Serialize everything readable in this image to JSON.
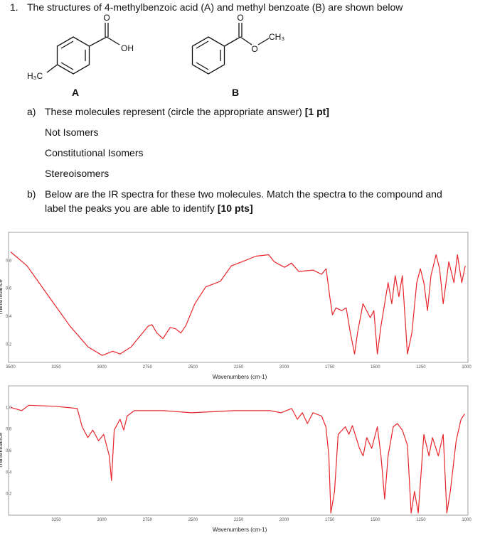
{
  "question": {
    "number": "1.",
    "text": "The structures of 4-methylbenzoic acid (A) and methyl benzoate (B) are  shown below"
  },
  "structures": {
    "A": {
      "label": "A",
      "carbonyl_o": "O",
      "hydroxyl": "OH",
      "methyl": "H₃C"
    },
    "B": {
      "label": "B",
      "carbonyl_o": "O",
      "ester_o": "O",
      "methyl": "CH₃"
    }
  },
  "part_a": {
    "label": "a)",
    "text": "These molecules represent (circle the appropriate answer) ",
    "points": "[1 pt]",
    "options": [
      "Not Isomers",
      "Constitutional Isomers",
      "Stereoisomers"
    ]
  },
  "part_b": {
    "label": "b)",
    "lines": [
      "Below are the IR spectra for these two molecules.  Match the spectra to the compound and",
      "label the peaks you are able to identify  "
    ],
    "points": "[10 pts]"
  },
  "chart_data": [
    {
      "type": "line",
      "xlabel": "Wavenumbers (cm-1)",
      "ylabel": "Transmittance",
      "color": "#e8252b",
      "grid": false,
      "xlim": [
        3500,
        1000
      ],
      "ylim": [
        0.07,
        1.0
      ],
      "xticks": [
        3500,
        3250,
        3000,
        2750,
        2500,
        2250,
        2000,
        1750,
        1500,
        1250,
        1000
      ],
      "yticks": [
        0.2,
        0.4,
        0.6,
        0.8
      ],
      "x": [
        3500,
        3410,
        3290,
        3175,
        3075,
        2998,
        2940,
        2900,
        2840,
        2783,
        2745,
        2725,
        2698,
        2665,
        2625,
        2595,
        2567,
        2540,
        2490,
        2430,
        2350,
        2290,
        2230,
        2155,
        2085,
        2055,
        1998,
        1960,
        1920,
        1842,
        1795,
        1770,
        1750,
        1735,
        1716,
        1685,
        1660,
        1637,
        1614,
        1598,
        1568,
        1528,
        1508,
        1489,
        1469,
        1430,
        1410,
        1391,
        1371,
        1352,
        1324,
        1300,
        1273,
        1253,
        1234,
        1214,
        1195,
        1167,
        1148,
        1128,
        1097,
        1069,
        1050,
        1026,
        1007
      ],
      "values": [
        0.86,
        0.76,
        0.54,
        0.33,
        0.18,
        0.12,
        0.15,
        0.13,
        0.18,
        0.27,
        0.33,
        0.34,
        0.28,
        0.24,
        0.32,
        0.31,
        0.28,
        0.33,
        0.49,
        0.61,
        0.65,
        0.76,
        0.79,
        0.83,
        0.84,
        0.79,
        0.75,
        0.78,
        0.72,
        0.73,
        0.7,
        0.74,
        0.54,
        0.41,
        0.46,
        0.44,
        0.46,
        0.28,
        0.13,
        0.28,
        0.49,
        0.39,
        0.44,
        0.13,
        0.33,
        0.64,
        0.49,
        0.69,
        0.54,
        0.69,
        0.13,
        0.28,
        0.64,
        0.74,
        0.64,
        0.44,
        0.69,
        0.84,
        0.74,
        0.49,
        0.79,
        0.64,
        0.84,
        0.64,
        0.76
      ]
    },
    {
      "type": "line",
      "xlabel": "Wavenumbers (cm-1)",
      "ylabel": "Transmittance",
      "color": "#e8252b",
      "grid": false,
      "xlim": [
        3500,
        1000
      ],
      "ylim": [
        0,
        1.2
      ],
      "xticks": [
        3250,
        3000,
        2750,
        2500,
        2250,
        2000,
        1750,
        1500,
        1250,
        1000
      ],
      "yticks": [
        0.2,
        0.4,
        0.6,
        0.8,
        {
          "value": 1,
          "label": "1.0"
        }
      ],
      "x": [
        3500,
        3440,
        3400,
        3255,
        3135,
        3108,
        3077,
        3050,
        3018,
        2990,
        2959,
        2947,
        2932,
        2900,
        2880,
        2861,
        2822,
        2665,
        2508,
        2273,
        2077,
        2018,
        1959,
        1928,
        1900,
        1873,
        1842,
        1795,
        1771,
        1755,
        1744,
        1724,
        1704,
        1665,
        1645,
        1626,
        1587,
        1567,
        1547,
        1520,
        1489,
        1469,
        1449,
        1430,
        1402,
        1379,
        1352,
        1324,
        1304,
        1285,
        1265,
        1234,
        1206,
        1187,
        1155,
        1128,
        1108,
        1089,
        1057,
        1030,
        1010
      ],
      "values": [
        1.0,
        0.97,
        1.02,
        1.01,
        0.99,
        0.82,
        0.72,
        0.79,
        0.69,
        0.75,
        0.55,
        0.32,
        0.79,
        0.89,
        0.79,
        0.92,
        0.97,
        0.97,
        0.95,
        0.97,
        0.97,
        0.95,
        0.99,
        0.89,
        0.95,
        0.85,
        0.95,
        0.92,
        0.82,
        0.55,
        0.02,
        0.22,
        0.75,
        0.82,
        0.75,
        0.83,
        0.62,
        0.55,
        0.72,
        0.62,
        0.82,
        0.55,
        0.15,
        0.55,
        0.82,
        0.85,
        0.79,
        0.65,
        0.02,
        0.22,
        0.02,
        0.75,
        0.55,
        0.72,
        0.55,
        0.75,
        0.02,
        0.22,
        0.69,
        0.89,
        0.94
      ]
    }
  ]
}
